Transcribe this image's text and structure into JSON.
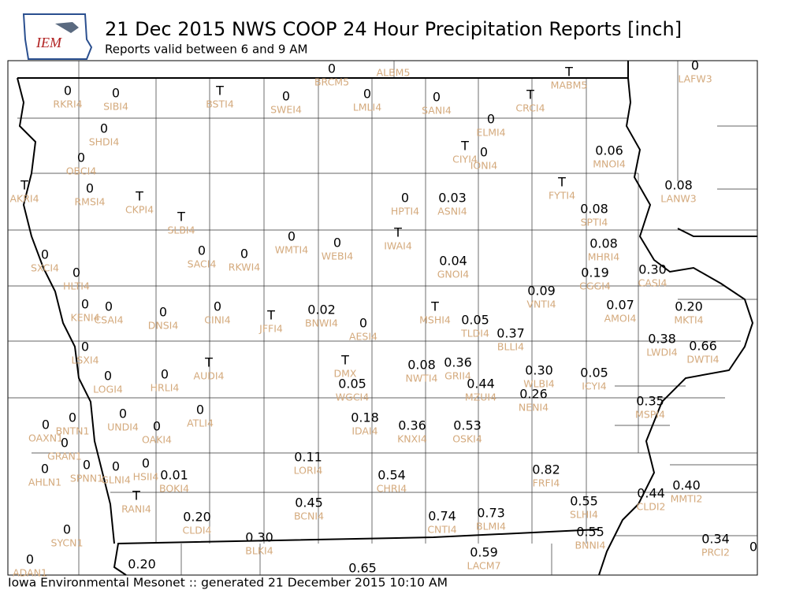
{
  "header": {
    "logo": "IEM",
    "title": "21 Dec 2015 NWS COOP 24 Hour Precipitation Reports [inch]",
    "subtitle": "Reports valid between 6 and 9 AM"
  },
  "stations": [
    {
      "value": "0",
      "id": "BRCM5"
    },
    {
      "id": "ALBM5"
    },
    {
      "value": "T",
      "id": "MABM5"
    },
    {
      "value": "0",
      "id": "LAFW3"
    },
    {
      "value": "0",
      "id": "RKRI4"
    },
    {
      "value": "0",
      "id": "SIBI4"
    },
    {
      "value": "T",
      "id": "BSTI4"
    },
    {
      "value": "0",
      "id": "SWEI4"
    },
    {
      "value": "0",
      "id": "LMLI4"
    },
    {
      "value": "0",
      "id": "SANI4"
    },
    {
      "value": "T",
      "id": "CRCI4"
    },
    {
      "value": "0",
      "id": "ELMI4"
    },
    {
      "value": "0",
      "id": "SHDI4"
    },
    {
      "value": "T",
      "id": "CIYI4"
    },
    {
      "value": "0",
      "id": "IONI4"
    },
    {
      "value": "0.06",
      "id": "MNOI4"
    },
    {
      "value": "0",
      "id": "OBCI4"
    },
    {
      "value": "T",
      "id": "AKRI4"
    },
    {
      "value": "0",
      "id": "RMSI4"
    },
    {
      "value": "T",
      "id": "CKPI4"
    },
    {
      "value": "0",
      "id": "HPTI4"
    },
    {
      "value": "0.03",
      "id": "ASNI4"
    },
    {
      "value": "T",
      "id": "FYTI4"
    },
    {
      "value": "0.08",
      "id": "LANW3"
    },
    {
      "value": "0.08",
      "id": "SPTI4"
    },
    {
      "value": "T",
      "id": "SLBI4"
    },
    {
      "value": "0",
      "id": "WMTI4"
    },
    {
      "value": "0",
      "id": "WEBI4"
    },
    {
      "value": "T",
      "id": "IWAI4"
    },
    {
      "value": "0",
      "id": "SACI4"
    },
    {
      "value": "0",
      "id": "RKWI4"
    },
    {
      "value": "0",
      "id": "SXCI4"
    },
    {
      "value": "0.08",
      "id": "MHRI4"
    },
    {
      "value": "0.04",
      "id": "GNOI4"
    },
    {
      "value": "0",
      "id": "HLTI4"
    },
    {
      "value": "0.19",
      "id": "CGGI4"
    },
    {
      "value": "0.30",
      "id": "CASI4"
    },
    {
      "value": "0.09",
      "id": "VNTI4"
    },
    {
      "value": "0",
      "id": "KENI4"
    },
    {
      "value": "0",
      "id": "CSAI4"
    },
    {
      "value": "0",
      "id": "DNSI4"
    },
    {
      "value": "0",
      "id": "CINI4"
    },
    {
      "value": "T",
      "id": "JFFI4"
    },
    {
      "value": "0.02",
      "id": "BNWI4"
    },
    {
      "value": "0",
      "id": "AESI4"
    },
    {
      "value": "T",
      "id": "MSHI4"
    },
    {
      "value": "0.05",
      "id": "TLDI4"
    },
    {
      "value": "0.37",
      "id": "BLLI4"
    },
    {
      "value": "0.07",
      "id": "AMOI4"
    },
    {
      "value": "0.20",
      "id": "MKTI4"
    },
    {
      "value": "0.38",
      "id": "LWDI4"
    },
    {
      "value": "0.66",
      "id": "DWTI4"
    },
    {
      "value": "0",
      "id": "LSXI4"
    },
    {
      "value": "T",
      "id": "DMX"
    },
    {
      "value": "0.05",
      "id": "WGCI4"
    },
    {
      "value": "0.08",
      "id": "NWTI4"
    },
    {
      "value": "0.36",
      "id": "GRII4"
    },
    {
      "value": "0.44",
      "id": "MZUI4"
    },
    {
      "value": "0.30",
      "id": "WLBI4"
    },
    {
      "value": "0.26",
      "id": "NENI4"
    },
    {
      "value": "0.05",
      "id": "ICYI4"
    },
    {
      "value": "0",
      "id": "LOGI4"
    },
    {
      "value": "0",
      "id": "HRLI4"
    },
    {
      "value": "T",
      "id": "AUDI4"
    },
    {
      "value": "0.35",
      "id": "MSPI4"
    },
    {
      "value": "0",
      "id": "ATLI4"
    },
    {
      "value": "0",
      "id": "UNDI4"
    },
    {
      "value": "0",
      "id": "OAKI4"
    },
    {
      "value": "0.18",
      "id": "IDAI4"
    },
    {
      "value": "0.36",
      "id": "KNXI4"
    },
    {
      "value": "0.53",
      "id": "OSKI4"
    },
    {
      "value": "0",
      "id": "BNTN1"
    },
    {
      "value": "0",
      "id": "OAXN1"
    },
    {
      "value": "0",
      "id": "GRAN1"
    },
    {
      "value": "0",
      "id": "AHLN1"
    },
    {
      "value": "0",
      "id": "SPNN1"
    },
    {
      "value": "0",
      "id": "GLNI4"
    },
    {
      "value": "0",
      "id": "HSII4"
    },
    {
      "value": "0.01",
      "id": "BOKI4"
    },
    {
      "value": "0.11",
      "id": "LORI4"
    },
    {
      "value": "0.54",
      "id": "CHRI4"
    },
    {
      "value": "0.82",
      "id": "FRFI4"
    },
    {
      "value": "T",
      "id": "RANI4"
    },
    {
      "value": "0.45",
      "id": "BCNI4"
    },
    {
      "value": "0.74",
      "id": "CNTI4"
    },
    {
      "value": "0.73",
      "id": "BLMI4"
    },
    {
      "value": "0.55",
      "id": "SLHI4"
    },
    {
      "value": "0.44",
      "id": "CLDI2"
    },
    {
      "value": "0.40",
      "id": "MMTI2"
    },
    {
      "value": "0.20",
      "id": "CLDI4"
    },
    {
      "value": "0",
      "id": "SYCN1"
    },
    {
      "value": "0.30",
      "id": "BLKI4"
    },
    {
      "value": "0.55",
      "id": "BNNI4"
    },
    {
      "value": "0.34",
      "id": "PRCI2"
    },
    {
      "value": "0"
    },
    {
      "value": "0.59",
      "id": "LACM7"
    },
    {
      "value": "0",
      "id": "ADAN1"
    },
    {
      "value": "0.20"
    },
    {
      "value": "0.65"
    }
  ],
  "footer": "Iowa Environmental Mesonet :: generated 21 December 2015 10:10 AM"
}
